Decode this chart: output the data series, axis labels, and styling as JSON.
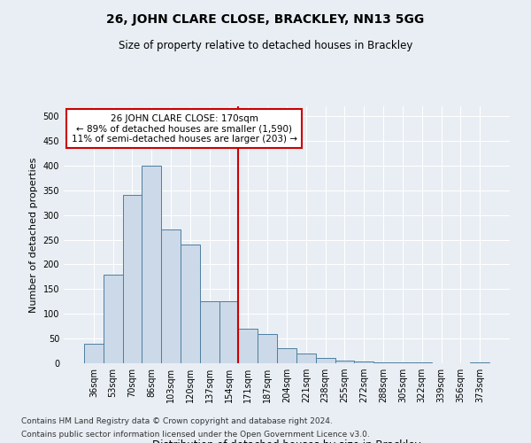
{
  "title": "26, JOHN CLARE CLOSE, BRACKLEY, NN13 5GG",
  "subtitle": "Size of property relative to detached houses in Brackley",
  "xlabel": "Distribution of detached houses by size in Brackley",
  "ylabel": "Number of detached properties",
  "footer1": "Contains HM Land Registry data © Crown copyright and database right 2024.",
  "footer2": "Contains public sector information licensed under the Open Government Licence v3.0.",
  "bin_labels": [
    "36sqm",
    "53sqm",
    "70sqm",
    "86sqm",
    "103sqm",
    "120sqm",
    "137sqm",
    "154sqm",
    "171sqm",
    "187sqm",
    "204sqm",
    "221sqm",
    "238sqm",
    "255sqm",
    "272sqm",
    "288sqm",
    "305sqm",
    "322sqm",
    "339sqm",
    "356sqm",
    "373sqm"
  ],
  "bar_values": [
    40,
    180,
    340,
    400,
    270,
    240,
    125,
    125,
    70,
    60,
    30,
    20,
    10,
    5,
    3,
    2,
    1,
    1,
    0,
    0,
    2
  ],
  "bar_color": "#ccd9e8",
  "bar_edge_color": "#4d7ea0",
  "vline_color": "#cc0000",
  "annotation_text1": "26 JOHN CLARE CLOSE: 170sqm",
  "annotation_text2": "← 89% of detached houses are smaller (1,590)",
  "annotation_text3": "11% of semi-detached houses are larger (203) →",
  "annotation_box_color": "#cc0000",
  "vline_bin_index": 8,
  "ylim": [
    0,
    520
  ],
  "yticks": [
    0,
    50,
    100,
    150,
    200,
    250,
    300,
    350,
    400,
    450,
    500
  ],
  "bg_color": "#e8eef4",
  "plot_bg_color": "#e8eef4",
  "grid_color": "#ffffff",
  "title_fontsize": 10,
  "subtitle_fontsize": 8.5,
  "ylabel_fontsize": 8,
  "xlabel_fontsize": 8.5,
  "tick_fontsize": 7,
  "annot_fontsize": 7.5,
  "footer_fontsize": 6.5
}
